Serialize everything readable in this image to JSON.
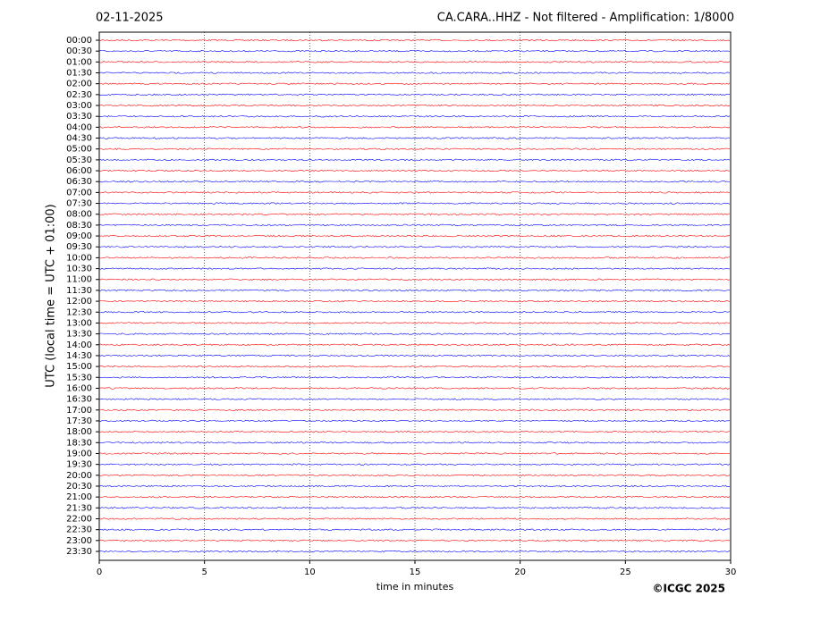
{
  "chart_data": {
    "type": "helicorder",
    "date": "02-11-2025",
    "title": "CA.CARA..HHZ - Not filtered - Amplification: 1/8000",
    "ylabel": "UTC (local time = UTC + 01:00)",
    "xlabel": "time in minutes",
    "credit": "©ICGC 2025",
    "categories": [
      "00:00",
      "00:30",
      "01:00",
      "01:30",
      "02:00",
      "02:30",
      "03:00",
      "03:30",
      "04:00",
      "04:30",
      "05:00",
      "05:30",
      "06:00",
      "06:30",
      "07:00",
      "07:30",
      "08:00",
      "08:30",
      "09:00",
      "09:30",
      "10:00",
      "10:30",
      "11:00",
      "11:30",
      "12:00",
      "12:30",
      "13:00",
      "13:30",
      "14:00",
      "14:30",
      "15:00",
      "15:30",
      "16:00",
      "16:30",
      "17:00",
      "17:30",
      "18:00",
      "18:30",
      "19:00",
      "19:30",
      "20:00",
      "20:30",
      "21:00",
      "21:30",
      "22:00",
      "22:30",
      "23:00",
      "23:30"
    ],
    "trace_colors": [
      "#ff0000",
      "#0000ff"
    ],
    "xlim": [
      0,
      30
    ],
    "xticks": [
      0,
      5,
      10,
      15,
      20,
      25,
      30
    ],
    "grid": true
  }
}
